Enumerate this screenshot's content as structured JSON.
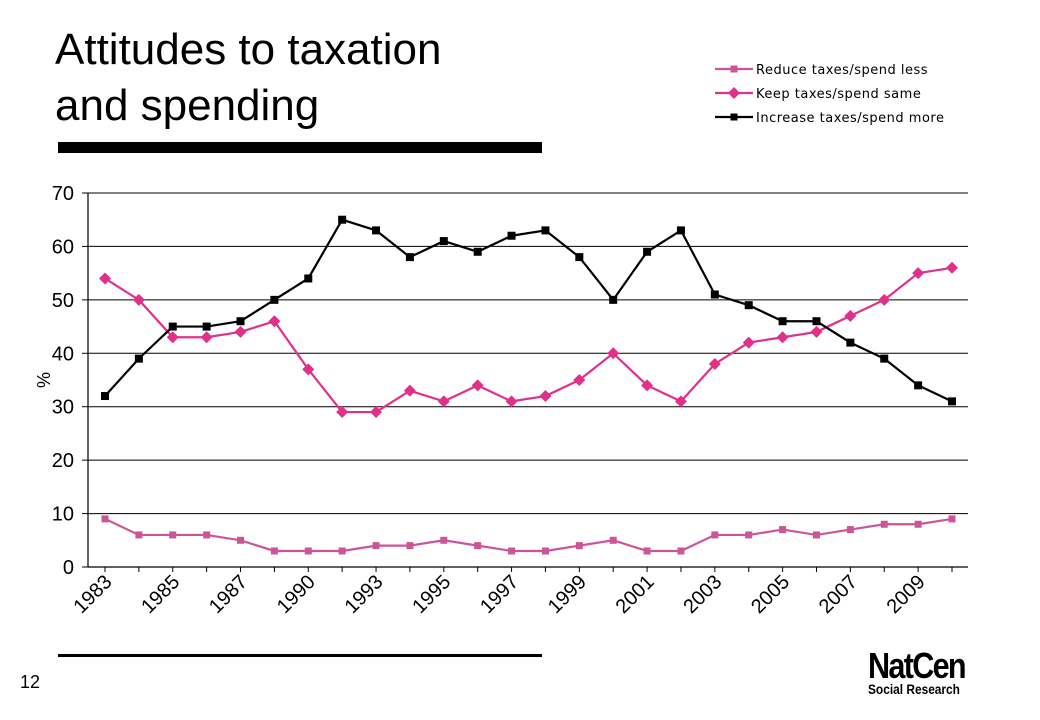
{
  "slide": {
    "title_line1": "Attitudes to taxation",
    "title_line2": "and spending",
    "page_number": "12",
    "logo_main": "NatCen",
    "logo_sub": "Social Research"
  },
  "chart_data": {
    "type": "line",
    "title": "",
    "xlabel": "",
    "ylabel": "%",
    "ylim": [
      0,
      70
    ],
    "yticks": [
      0,
      10,
      20,
      30,
      40,
      50,
      60,
      70
    ],
    "x_tick_labels": [
      "1983",
      "1985",
      "1987",
      "1990",
      "1993",
      "1995",
      "1997",
      "1999",
      "2001",
      "2003",
      "2005",
      "2007",
      "2009"
    ],
    "grid": "horizontal",
    "legend_position": "top-right",
    "series": [
      {
        "name": "Reduce taxes/spend less",
        "color": "#cc5599",
        "marker": "square",
        "values": [
          9,
          6,
          6,
          6,
          5,
          3,
          3,
          3,
          4,
          4,
          5,
          4,
          3,
          3,
          4,
          5,
          3,
          3,
          6,
          6,
          7,
          6,
          7,
          8,
          8,
          9
        ]
      },
      {
        "name": "Keep taxes/spend same",
        "color": "#e0308a",
        "marker": "diamond",
        "values": [
          54,
          50,
          43,
          43,
          44,
          46,
          37,
          29,
          29,
          33,
          31,
          34,
          31,
          32,
          35,
          40,
          34,
          31,
          38,
          42,
          43,
          44,
          47,
          50,
          55,
          56
        ]
      },
      {
        "name": "Increase taxes/spend more",
        "color": "#000000",
        "marker": "square",
        "values": [
          32,
          39,
          45,
          45,
          46,
          50,
          54,
          65,
          63,
          58,
          61,
          59,
          62,
          63,
          58,
          50,
          59,
          63,
          51,
          49,
          46,
          46,
          42,
          39,
          34,
          31
        ]
      }
    ]
  }
}
